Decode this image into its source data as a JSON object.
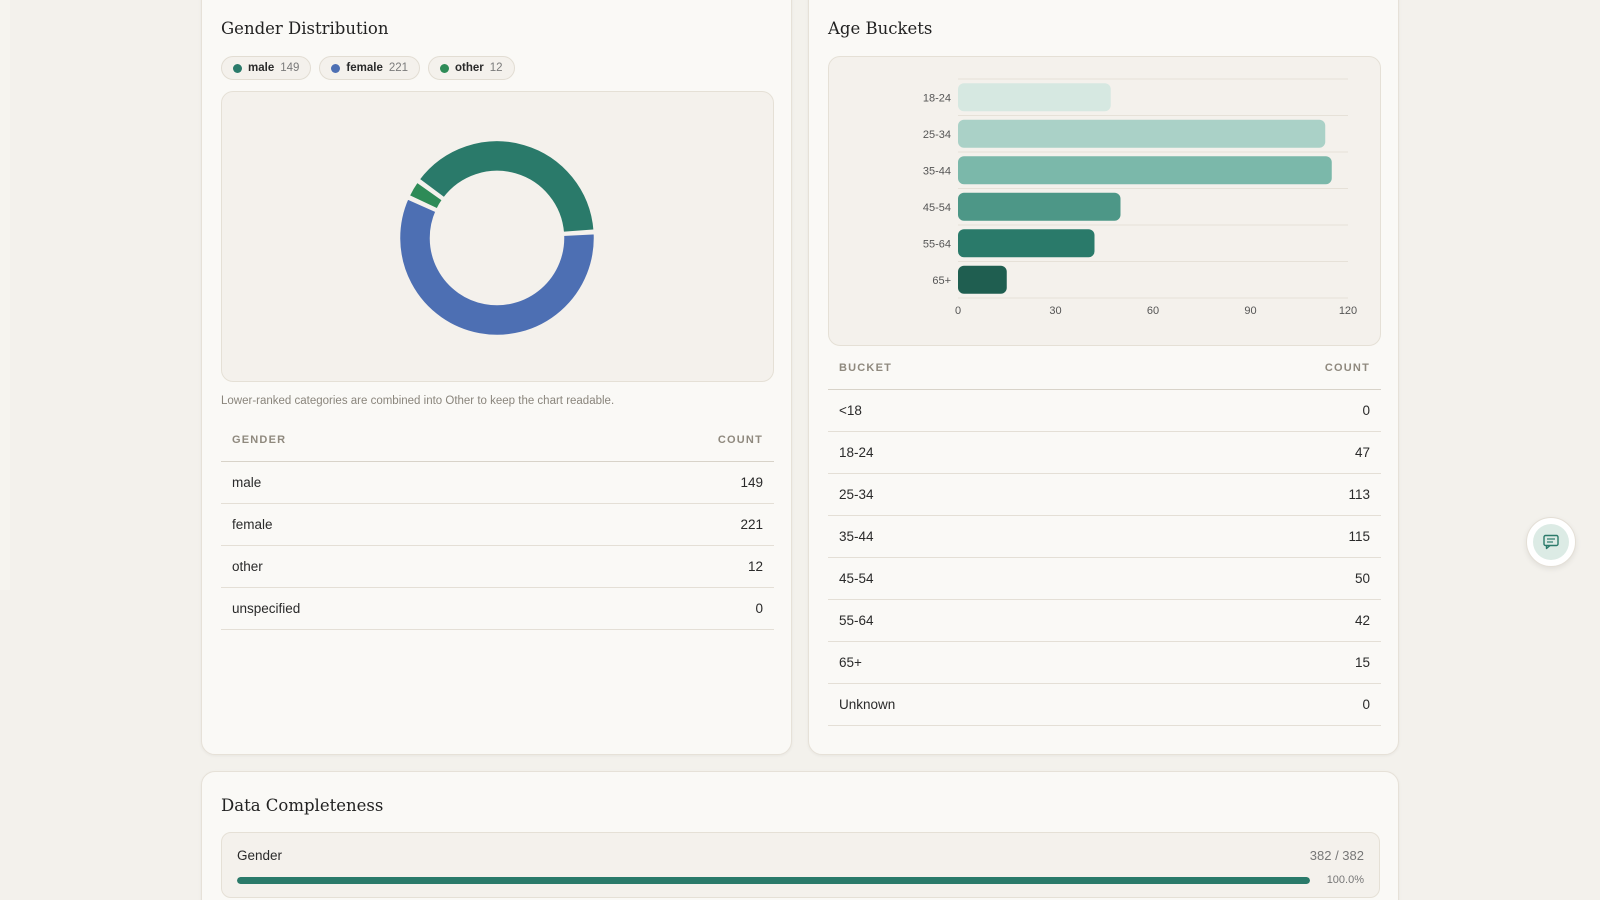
{
  "gender_card": {
    "title": "Gender Distribution",
    "legend": [
      {
        "label": "male",
        "count": "149",
        "color": "#2a7a6a"
      },
      {
        "label": "female",
        "count": "221",
        "color": "#4d6fb3"
      },
      {
        "label": "other",
        "count": "12",
        "color": "#2e8b57"
      }
    ],
    "note": "Lower-ranked categories are combined into Other to keep the chart readable.",
    "table": {
      "headers": [
        "GENDER",
        "COUNT"
      ],
      "rows": [
        {
          "label": "male",
          "count": "149"
        },
        {
          "label": "female",
          "count": "221"
        },
        {
          "label": "other",
          "count": "12"
        },
        {
          "label": "unspecified",
          "count": "0"
        }
      ]
    }
  },
  "age_card": {
    "title": "Age Buckets",
    "table": {
      "headers": [
        "BUCKET",
        "COUNT"
      ],
      "rows": [
        {
          "label": "<18",
          "count": "0"
        },
        {
          "label": "18-24",
          "count": "47"
        },
        {
          "label": "25-34",
          "count": "113"
        },
        {
          "label": "35-44",
          "count": "115"
        },
        {
          "label": "45-54",
          "count": "50"
        },
        {
          "label": "55-64",
          "count": "42"
        },
        {
          "label": "65+",
          "count": "15"
        },
        {
          "label": "Unknown",
          "count": "0"
        }
      ]
    }
  },
  "completeness_card": {
    "title": "Data Completeness",
    "rows": [
      {
        "label": "Gender",
        "count": "382 / 382",
        "percent_label": "100.0%",
        "fraction": 1.0,
        "color": "#2a7a6a"
      }
    ]
  },
  "chat_button": {
    "icon": "chat-icon",
    "color": "#2a7a6a"
  },
  "chart_data": [
    {
      "type": "pie",
      "style": "donut",
      "categories": [
        "male",
        "female",
        "other"
      ],
      "values": [
        149,
        221,
        12
      ],
      "colors": [
        "#2a7a6a",
        "#4d6fb3",
        "#2e8b57"
      ]
    },
    {
      "type": "bar",
      "orientation": "horizontal",
      "categories": [
        "18-24",
        "25-34",
        "35-44",
        "45-54",
        "55-64",
        "65+"
      ],
      "values": [
        47,
        113,
        115,
        50,
        42,
        15
      ],
      "colors": [
        "#d6e8e1",
        "#aad1c7",
        "#7bb8aa",
        "#4d9787",
        "#2a7a6a",
        "#1f5e50"
      ],
      "xticks": [
        "0",
        "30",
        "60",
        "90",
        "120"
      ],
      "xlim": [
        0,
        120
      ],
      "grid": true
    }
  ]
}
